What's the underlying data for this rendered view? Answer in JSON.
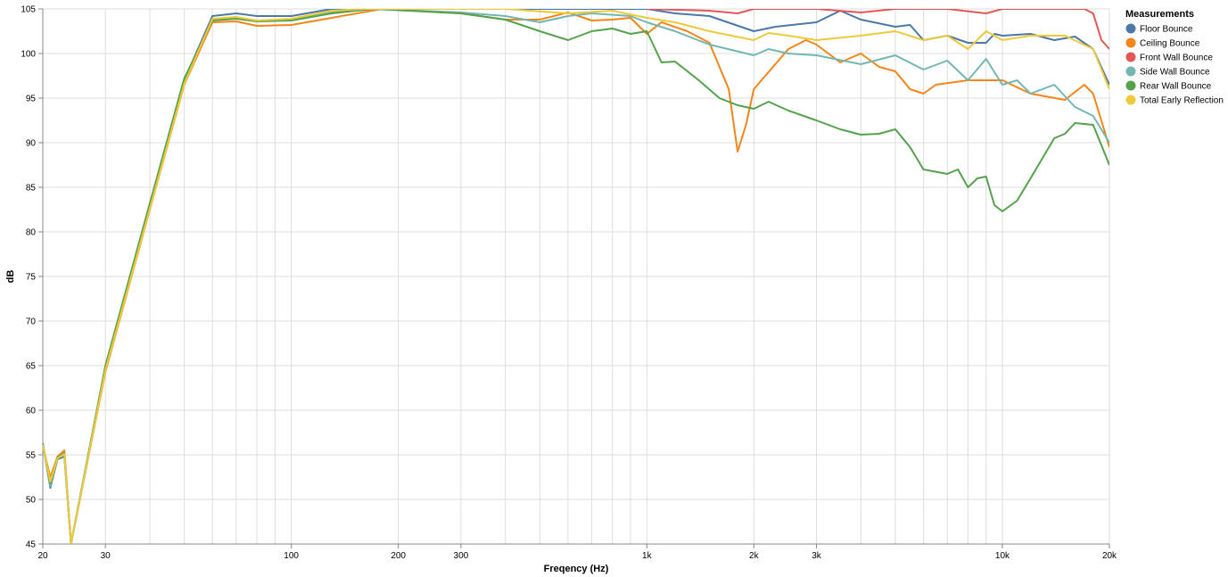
{
  "chart_data": {
    "type": "line",
    "xlabel": "Freqency (Hz)",
    "ylabel": "dB",
    "x_scale": "log",
    "xlim": [
      20,
      20000
    ],
    "ylim": [
      45,
      105
    ],
    "grid": true,
    "x_ticks": [
      {
        "value": 20,
        "label": "20"
      },
      {
        "value": 30,
        "label": "30"
      },
      {
        "value": 100,
        "label": "100"
      },
      {
        "value": 200,
        "label": "200"
      },
      {
        "value": 300,
        "label": "300"
      },
      {
        "value": 1000,
        "label": "1k"
      },
      {
        "value": 2000,
        "label": "2k"
      },
      {
        "value": 3000,
        "label": "3k"
      },
      {
        "value": 10000,
        "label": "10k"
      },
      {
        "value": 20000,
        "label": "20k"
      }
    ],
    "y_ticks": [
      45,
      50,
      55,
      60,
      65,
      70,
      75,
      80,
      85,
      90,
      95,
      100,
      105
    ],
    "legend": {
      "title": "Measurements",
      "position": "top-right"
    },
    "series": [
      {
        "name": "Floor Bounce",
        "color": "#4c78a8",
        "points": [
          [
            20,
            56.3
          ],
          [
            21,
            51.3
          ],
          [
            22,
            54.5
          ],
          [
            23,
            54.8
          ],
          [
            24,
            45
          ],
          [
            30,
            64.8
          ],
          [
            40,
            83
          ],
          [
            50,
            97
          ],
          [
            60,
            104.2
          ],
          [
            70,
            104.5
          ],
          [
            80,
            104.2
          ],
          [
            100,
            104.2
          ],
          [
            130,
            105
          ],
          [
            400,
            105
          ],
          [
            600,
            105
          ],
          [
            800,
            105
          ],
          [
            1000,
            105
          ],
          [
            1200,
            104.5
          ],
          [
            1500,
            104.2
          ],
          [
            2000,
            102.5
          ],
          [
            2300,
            103
          ],
          [
            3000,
            103.5
          ],
          [
            3500,
            104.8
          ],
          [
            4000,
            103.8
          ],
          [
            5000,
            103
          ],
          [
            5500,
            103.2
          ],
          [
            6000,
            101.5
          ],
          [
            7000,
            102
          ],
          [
            8000,
            101.2
          ],
          [
            9000,
            101.2
          ],
          [
            9500,
            102.2
          ],
          [
            10000,
            102
          ],
          [
            12000,
            102.2
          ],
          [
            14000,
            101.5
          ],
          [
            16000,
            101.9
          ],
          [
            18000,
            100.5
          ],
          [
            20000,
            96.5
          ]
        ]
      },
      {
        "name": "Ceiling Bounce",
        "color": "#f58518",
        "points": [
          [
            20,
            56
          ],
          [
            21,
            52.5
          ],
          [
            22,
            54.8
          ],
          [
            23,
            55.5
          ],
          [
            24,
            45
          ],
          [
            30,
            64.3
          ],
          [
            40,
            82.5
          ],
          [
            50,
            96.5
          ],
          [
            60,
            103.5
          ],
          [
            70,
            103.6
          ],
          [
            80,
            103.1
          ],
          [
            100,
            103.2
          ],
          [
            130,
            104
          ],
          [
            180,
            105
          ],
          [
            300,
            104.5
          ],
          [
            400,
            103.8
          ],
          [
            500,
            103.8
          ],
          [
            600,
            104.6
          ],
          [
            700,
            103.7
          ],
          [
            800,
            103.8
          ],
          [
            900,
            104
          ],
          [
            1000,
            102.2
          ],
          [
            1100,
            103.5
          ],
          [
            1300,
            102.5
          ],
          [
            1500,
            101.2
          ],
          [
            1700,
            96
          ],
          [
            1800,
            89
          ],
          [
            1900,
            92
          ],
          [
            2000,
            96
          ],
          [
            2500,
            100.5
          ],
          [
            2800,
            101.5
          ],
          [
            3000,
            101
          ],
          [
            3500,
            99
          ],
          [
            4000,
            100
          ],
          [
            4500,
            98.5
          ],
          [
            5000,
            98
          ],
          [
            5500,
            96
          ],
          [
            6000,
            95.5
          ],
          [
            6500,
            96.5
          ],
          [
            8000,
            97
          ],
          [
            10000,
            97
          ],
          [
            12000,
            95.5
          ],
          [
            15000,
            94.8
          ],
          [
            17000,
            96.5
          ],
          [
            18000,
            95.5
          ],
          [
            20000,
            89.5
          ]
        ]
      },
      {
        "name": "Front Wall Bounce",
        "color": "#e45756",
        "points": [
          [
            1000,
            105
          ],
          [
            1500,
            104.8
          ],
          [
            1800,
            104.5
          ],
          [
            2000,
            105
          ],
          [
            3000,
            105
          ],
          [
            4000,
            104.6
          ],
          [
            5000,
            105
          ],
          [
            7000,
            105
          ],
          [
            9000,
            104.5
          ],
          [
            10000,
            105
          ],
          [
            17000,
            105
          ],
          [
            18000,
            104.5
          ],
          [
            19000,
            101.5
          ],
          [
            20000,
            100.5
          ]
        ]
      },
      {
        "name": "Side Wall Bounce",
        "color": "#72b7b2",
        "points": [
          [
            20,
            56.2
          ],
          [
            21,
            51.5
          ],
          [
            22,
            54.6
          ],
          [
            23,
            55
          ],
          [
            24,
            45
          ],
          [
            30,
            64.6
          ],
          [
            40,
            82.8
          ],
          [
            50,
            96.8
          ],
          [
            60,
            103.8
          ],
          [
            70,
            104
          ],
          [
            80,
            103.7
          ],
          [
            100,
            103.8
          ],
          [
            130,
            104.6
          ],
          [
            170,
            105
          ],
          [
            300,
            104.6
          ],
          [
            400,
            104.2
          ],
          [
            500,
            103.5
          ],
          [
            600,
            104.2
          ],
          [
            700,
            104.5
          ],
          [
            900,
            104.2
          ],
          [
            1000,
            103.5
          ],
          [
            1200,
            102.5
          ],
          [
            1500,
            101
          ],
          [
            2000,
            99.8
          ],
          [
            2200,
            100.5
          ],
          [
            2500,
            100
          ],
          [
            3000,
            99.8
          ],
          [
            4000,
            98.8
          ],
          [
            5000,
            99.8
          ],
          [
            6000,
            98.2
          ],
          [
            7000,
            99.2
          ],
          [
            8000,
            97
          ],
          [
            9000,
            99.4
          ],
          [
            10000,
            96.5
          ],
          [
            11000,
            97
          ],
          [
            12000,
            95.5
          ],
          [
            14000,
            96.5
          ],
          [
            16000,
            94
          ],
          [
            18000,
            93
          ],
          [
            20000,
            90
          ]
        ]
      },
      {
        "name": "Rear Wall Bounce",
        "color": "#54a24b",
        "points": [
          [
            20,
            56.2
          ],
          [
            21,
            51.8
          ],
          [
            22,
            54.7
          ],
          [
            23,
            55.2
          ],
          [
            24,
            45
          ],
          [
            30,
            65
          ],
          [
            40,
            83.2
          ],
          [
            50,
            97.2
          ],
          [
            60,
            103.7
          ],
          [
            70,
            103.9
          ],
          [
            80,
            103.6
          ],
          [
            100,
            103.7
          ],
          [
            130,
            104.5
          ],
          [
            170,
            105
          ],
          [
            300,
            104.5
          ],
          [
            400,
            103.8
          ],
          [
            500,
            102.5
          ],
          [
            600,
            101.5
          ],
          [
            700,
            102.5
          ],
          [
            800,
            102.8
          ],
          [
            900,
            102.2
          ],
          [
            1000,
            102.5
          ],
          [
            1100,
            99
          ],
          [
            1200,
            99.1
          ],
          [
            1400,
            97
          ],
          [
            1600,
            95
          ],
          [
            1800,
            94.2
          ],
          [
            2000,
            93.8
          ],
          [
            2200,
            94.6
          ],
          [
            2500,
            93.6
          ],
          [
            3000,
            92.5
          ],
          [
            3500,
            91.5
          ],
          [
            4000,
            90.9
          ],
          [
            4500,
            91
          ],
          [
            5000,
            91.5
          ],
          [
            5500,
            89.5
          ],
          [
            6000,
            87
          ],
          [
            7000,
            86.5
          ],
          [
            7500,
            87
          ],
          [
            8000,
            85
          ],
          [
            8500,
            86
          ],
          [
            9000,
            86.2
          ],
          [
            9500,
            83
          ],
          [
            10000,
            82.3
          ],
          [
            11000,
            83.5
          ],
          [
            12000,
            86
          ],
          [
            14000,
            90.5
          ],
          [
            15000,
            91
          ],
          [
            16000,
            92.2
          ],
          [
            18000,
            92
          ],
          [
            20000,
            87.5
          ]
        ]
      },
      {
        "name": "Total Early Reflection",
        "color": "#eeca3b",
        "points": [
          [
            20,
            56.1
          ],
          [
            21,
            52
          ],
          [
            22,
            54.6
          ],
          [
            23,
            55.1
          ],
          [
            24,
            45
          ],
          [
            30,
            64.5
          ],
          [
            40,
            82.6
          ],
          [
            50,
            96.6
          ],
          [
            60,
            103.9
          ],
          [
            70,
            104.1
          ],
          [
            80,
            103.7
          ],
          [
            100,
            103.9
          ],
          [
            130,
            104.8
          ],
          [
            160,
            105
          ],
          [
            400,
            105
          ],
          [
            600,
            104.5
          ],
          [
            800,
            104.8
          ],
          [
            1000,
            104
          ],
          [
            1200,
            103.5
          ],
          [
            1500,
            102.5
          ],
          [
            2000,
            101.5
          ],
          [
            2200,
            102.3
          ],
          [
            2500,
            102
          ],
          [
            3000,
            101.5
          ],
          [
            4000,
            102
          ],
          [
            5000,
            102.5
          ],
          [
            6000,
            101.5
          ],
          [
            7000,
            102
          ],
          [
            8000,
            100.5
          ],
          [
            9000,
            102.5
          ],
          [
            10000,
            101.5
          ],
          [
            12000,
            102
          ],
          [
            15000,
            102
          ],
          [
            18000,
            100.5
          ],
          [
            20000,
            96
          ]
        ]
      }
    ]
  }
}
